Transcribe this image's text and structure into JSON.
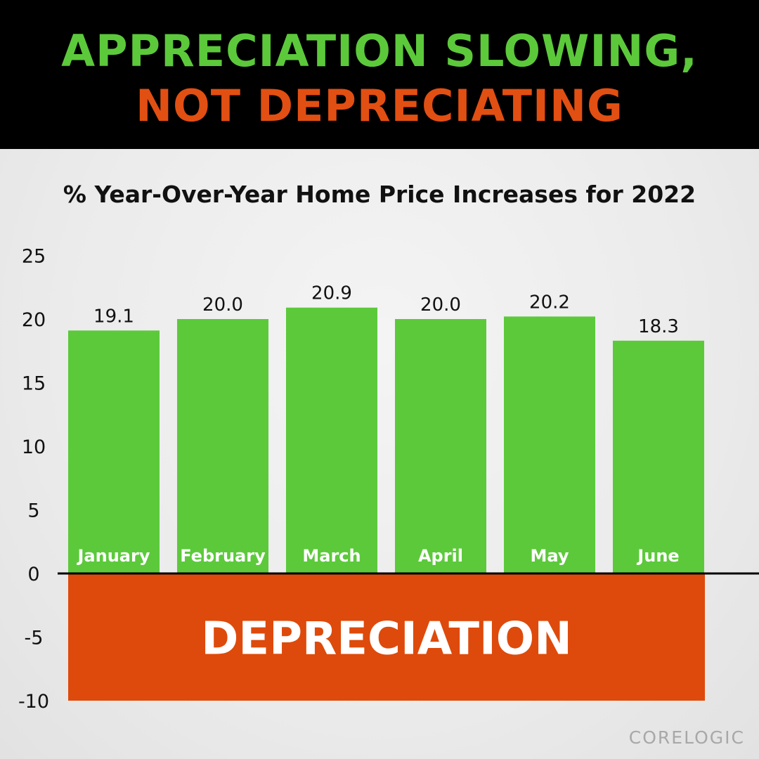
{
  "header": {
    "line1": "APPRECIATION SLOWING,",
    "line2": "NOT DEPRECIATING",
    "line1_color": "#5cc93b",
    "line2_color": "#e24f12"
  },
  "source": "CORELOGIC",
  "colors": {
    "bar": "#5cc93b",
    "depreciation_zone": "#de4a0b",
    "bar_label_text": "#ffffff",
    "axis_text": "#111111"
  },
  "chart_data": {
    "type": "bar",
    "title": "% Year-Over-Year Home Price Increases for 2022",
    "categories": [
      "January",
      "February",
      "March",
      "April",
      "May",
      "June"
    ],
    "values": [
      19.1,
      20.0,
      20.9,
      20.0,
      20.2,
      18.3
    ],
    "data_labels": [
      "19.1",
      "20.0",
      "20.9",
      "20.0",
      "20.2",
      "18.3"
    ],
    "yticks": [
      25,
      20,
      15,
      10,
      5,
      0,
      -5,
      -10
    ],
    "ylim": [
      -10,
      25
    ],
    "grid": false,
    "category_labels_position": "inside-bar-bottom",
    "negative_region": {
      "label": "DEPRECIATION",
      "from": -10,
      "to": 0
    }
  }
}
